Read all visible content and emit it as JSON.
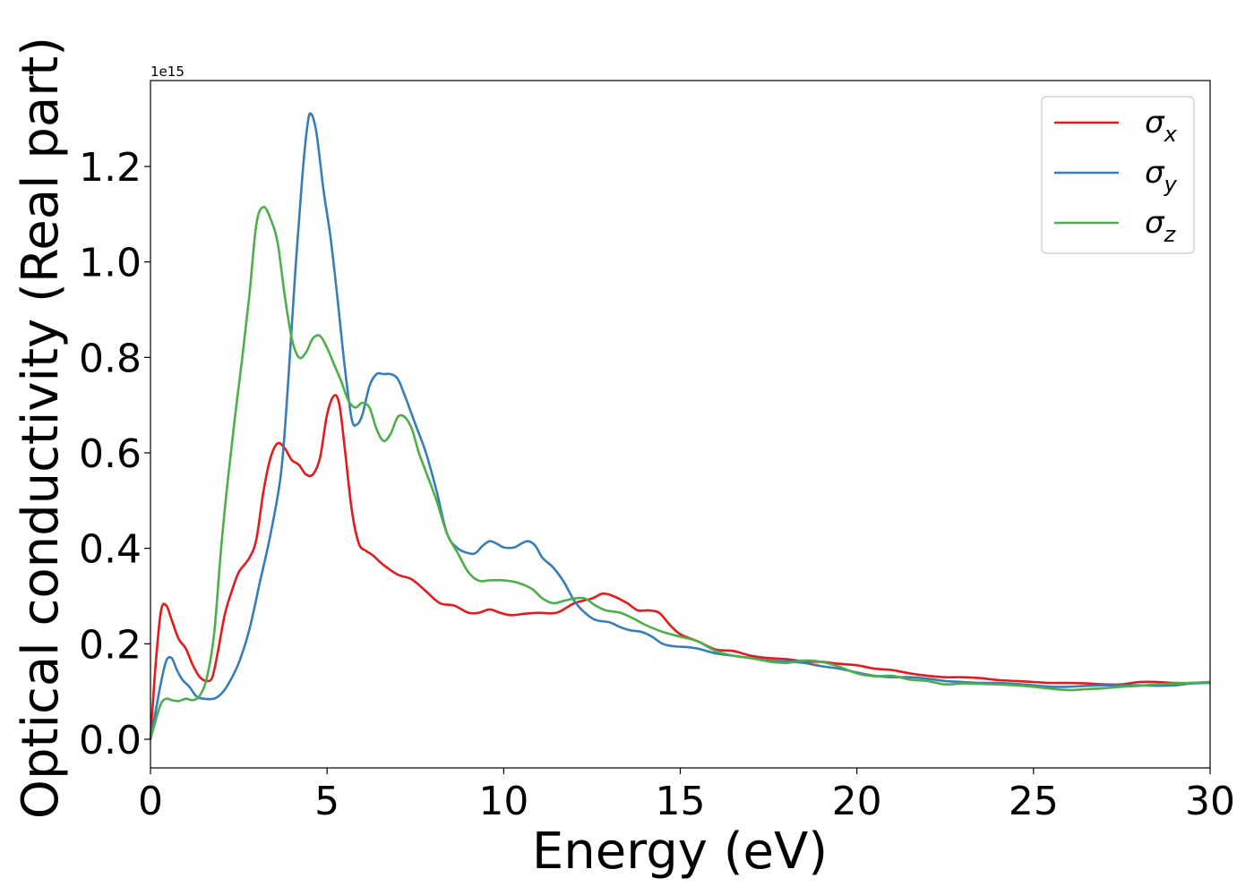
{
  "chart_data": {
    "type": "line",
    "xlabel": "Energy (eV)",
    "ylabel": "Optical conductivity (Real part)",
    "y_multiplier": "1e15",
    "xlim": [
      0,
      30
    ],
    "ylim": [
      -0.06,
      1.38
    ],
    "x_ticks": [
      0,
      5,
      10,
      15,
      20,
      25,
      30
    ],
    "x_tick_labels": [
      "0",
      "5",
      "10",
      "15",
      "20",
      "25",
      "30"
    ],
    "y_ticks": [
      0.0,
      0.2,
      0.4,
      0.6,
      0.8,
      1.0,
      1.2
    ],
    "y_tick_labels": [
      "0.0",
      "0.2",
      "0.4",
      "0.6",
      "0.8",
      "1.0",
      "1.2"
    ],
    "grid": false,
    "legend_position": "top-right",
    "series": [
      {
        "name": "σ",
        "subscript": "x",
        "color": "#e41a1c",
        "points": [
          [
            0,
            0
          ],
          [
            0.15,
            0.16
          ],
          [
            0.3,
            0.27
          ],
          [
            0.45,
            0.28
          ],
          [
            0.6,
            0.25
          ],
          [
            0.8,
            0.21
          ],
          [
            1.0,
            0.19
          ],
          [
            1.2,
            0.155
          ],
          [
            1.4,
            0.13
          ],
          [
            1.6,
            0.122
          ],
          [
            1.75,
            0.13
          ],
          [
            1.9,
            0.18
          ],
          [
            2.1,
            0.26
          ],
          [
            2.3,
            0.31
          ],
          [
            2.5,
            0.35
          ],
          [
            2.8,
            0.38
          ],
          [
            3.0,
            0.42
          ],
          [
            3.2,
            0.52
          ],
          [
            3.4,
            0.59
          ],
          [
            3.6,
            0.62
          ],
          [
            3.8,
            0.61
          ],
          [
            4.0,
            0.585
          ],
          [
            4.2,
            0.575
          ],
          [
            4.4,
            0.555
          ],
          [
            4.6,
            0.555
          ],
          [
            4.8,
            0.59
          ],
          [
            5.0,
            0.68
          ],
          [
            5.2,
            0.72
          ],
          [
            5.35,
            0.7
          ],
          [
            5.5,
            0.61
          ],
          [
            5.7,
            0.48
          ],
          [
            5.9,
            0.41
          ],
          [
            6.1,
            0.395
          ],
          [
            6.3,
            0.385
          ],
          [
            6.6,
            0.365
          ],
          [
            7.0,
            0.345
          ],
          [
            7.4,
            0.335
          ],
          [
            7.8,
            0.31
          ],
          [
            8.2,
            0.285
          ],
          [
            8.6,
            0.28
          ],
          [
            9.0,
            0.265
          ],
          [
            9.3,
            0.265
          ],
          [
            9.6,
            0.272
          ],
          [
            9.9,
            0.265
          ],
          [
            10.2,
            0.26
          ],
          [
            10.6,
            0.263
          ],
          [
            11.0,
            0.265
          ],
          [
            11.5,
            0.265
          ],
          [
            12.0,
            0.285
          ],
          [
            12.5,
            0.295
          ],
          [
            12.8,
            0.305
          ],
          [
            13.1,
            0.3
          ],
          [
            13.5,
            0.285
          ],
          [
            13.8,
            0.27
          ],
          [
            14.1,
            0.27
          ],
          [
            14.4,
            0.265
          ],
          [
            14.7,
            0.24
          ],
          [
            15.0,
            0.22
          ],
          [
            15.5,
            0.205
          ],
          [
            16.0,
            0.188
          ],
          [
            16.5,
            0.185
          ],
          [
            17.0,
            0.175
          ],
          [
            17.5,
            0.17
          ],
          [
            18.0,
            0.168
          ],
          [
            18.5,
            0.163
          ],
          [
            19.0,
            0.162
          ],
          [
            19.5,
            0.158
          ],
          [
            20.0,
            0.155
          ],
          [
            20.5,
            0.148
          ],
          [
            21.0,
            0.145
          ],
          [
            21.5,
            0.138
          ],
          [
            22.0,
            0.133
          ],
          [
            22.5,
            0.13
          ],
          [
            23.0,
            0.13
          ],
          [
            23.5,
            0.128
          ],
          [
            24.0,
            0.124
          ],
          [
            24.5,
            0.122
          ],
          [
            25.0,
            0.12
          ],
          [
            25.5,
            0.118
          ],
          [
            26.0,
            0.118
          ],
          [
            26.5,
            0.117
          ],
          [
            27.0,
            0.115
          ],
          [
            27.5,
            0.115
          ],
          [
            28.0,
            0.12
          ],
          [
            28.5,
            0.12
          ],
          [
            29.0,
            0.118
          ],
          [
            29.5,
            0.118
          ],
          [
            30.0,
            0.12
          ]
        ]
      },
      {
        "name": "σ",
        "subscript": "y",
        "color": "#377eb8",
        "points": [
          [
            0,
            0
          ],
          [
            0.15,
            0.06
          ],
          [
            0.3,
            0.12
          ],
          [
            0.45,
            0.165
          ],
          [
            0.6,
            0.17
          ],
          [
            0.75,
            0.145
          ],
          [
            0.9,
            0.125
          ],
          [
            1.1,
            0.11
          ],
          [
            1.3,
            0.09
          ],
          [
            1.5,
            0.085
          ],
          [
            1.8,
            0.085
          ],
          [
            2.0,
            0.095
          ],
          [
            2.2,
            0.115
          ],
          [
            2.5,
            0.16
          ],
          [
            2.8,
            0.23
          ],
          [
            3.1,
            0.33
          ],
          [
            3.4,
            0.43
          ],
          [
            3.7,
            0.56
          ],
          [
            3.9,
            0.75
          ],
          [
            4.1,
            0.98
          ],
          [
            4.3,
            1.18
          ],
          [
            4.45,
            1.29
          ],
          [
            4.55,
            1.31
          ],
          [
            4.7,
            1.27
          ],
          [
            4.9,
            1.15
          ],
          [
            5.1,
            1.05
          ],
          [
            5.3,
            0.92
          ],
          [
            5.5,
            0.78
          ],
          [
            5.7,
            0.67
          ],
          [
            5.85,
            0.66
          ],
          [
            6.0,
            0.68
          ],
          [
            6.2,
            0.74
          ],
          [
            6.4,
            0.765
          ],
          [
            6.6,
            0.765
          ],
          [
            6.8,
            0.765
          ],
          [
            7.0,
            0.755
          ],
          [
            7.2,
            0.72
          ],
          [
            7.5,
            0.66
          ],
          [
            7.8,
            0.6
          ],
          [
            8.1,
            0.52
          ],
          [
            8.4,
            0.43
          ],
          [
            8.7,
            0.4
          ],
          [
            9.0,
            0.39
          ],
          [
            9.2,
            0.39
          ],
          [
            9.4,
            0.405
          ],
          [
            9.6,
            0.415
          ],
          [
            9.8,
            0.41
          ],
          [
            10.0,
            0.402
          ],
          [
            10.3,
            0.402
          ],
          [
            10.5,
            0.41
          ],
          [
            10.7,
            0.415
          ],
          [
            10.9,
            0.405
          ],
          [
            11.1,
            0.38
          ],
          [
            11.4,
            0.36
          ],
          [
            11.7,
            0.33
          ],
          [
            12.0,
            0.29
          ],
          [
            12.3,
            0.265
          ],
          [
            12.6,
            0.25
          ],
          [
            13.0,
            0.245
          ],
          [
            13.3,
            0.235
          ],
          [
            13.6,
            0.228
          ],
          [
            13.9,
            0.225
          ],
          [
            14.2,
            0.215
          ],
          [
            14.5,
            0.2
          ],
          [
            14.8,
            0.195
          ],
          [
            15.2,
            0.193
          ],
          [
            15.5,
            0.19
          ],
          [
            16.0,
            0.18
          ],
          [
            16.5,
            0.175
          ],
          [
            17.0,
            0.17
          ],
          [
            17.5,
            0.165
          ],
          [
            18.0,
            0.163
          ],
          [
            18.5,
            0.16
          ],
          [
            19.0,
            0.153
          ],
          [
            19.5,
            0.148
          ],
          [
            20.0,
            0.14
          ],
          [
            20.5,
            0.133
          ],
          [
            21.0,
            0.13
          ],
          [
            21.5,
            0.13
          ],
          [
            22.0,
            0.127
          ],
          [
            22.5,
            0.122
          ],
          [
            23.0,
            0.12
          ],
          [
            23.5,
            0.118
          ],
          [
            24.0,
            0.118
          ],
          [
            24.5,
            0.116
          ],
          [
            25.0,
            0.113
          ],
          [
            25.5,
            0.11
          ],
          [
            26.0,
            0.11
          ],
          [
            26.5,
            0.112
          ],
          [
            27.0,
            0.113
          ],
          [
            27.5,
            0.113
          ],
          [
            28.0,
            0.113
          ],
          [
            28.5,
            0.112
          ],
          [
            29.0,
            0.113
          ],
          [
            29.5,
            0.117
          ],
          [
            30.0,
            0.118
          ]
        ]
      },
      {
        "name": "σ",
        "subscript": "z",
        "color": "#4daf4a",
        "points": [
          [
            0,
            0
          ],
          [
            0.15,
            0.04
          ],
          [
            0.3,
            0.075
          ],
          [
            0.45,
            0.085
          ],
          [
            0.6,
            0.082
          ],
          [
            0.8,
            0.08
          ],
          [
            1.0,
            0.085
          ],
          [
            1.2,
            0.082
          ],
          [
            1.4,
            0.092
          ],
          [
            1.6,
            0.13
          ],
          [
            1.8,
            0.22
          ],
          [
            2.0,
            0.4
          ],
          [
            2.2,
            0.55
          ],
          [
            2.4,
            0.68
          ],
          [
            2.6,
            0.8
          ],
          [
            2.8,
            0.93
          ],
          [
            3.0,
            1.08
          ],
          [
            3.2,
            1.115
          ],
          [
            3.4,
            1.09
          ],
          [
            3.6,
            1.04
          ],
          [
            3.8,
            0.93
          ],
          [
            4.0,
            0.84
          ],
          [
            4.2,
            0.8
          ],
          [
            4.4,
            0.81
          ],
          [
            4.6,
            0.84
          ],
          [
            4.8,
            0.845
          ],
          [
            5.0,
            0.82
          ],
          [
            5.2,
            0.785
          ],
          [
            5.4,
            0.75
          ],
          [
            5.6,
            0.71
          ],
          [
            5.8,
            0.695
          ],
          [
            6.0,
            0.705
          ],
          [
            6.2,
            0.695
          ],
          [
            6.4,
            0.65
          ],
          [
            6.6,
            0.625
          ],
          [
            6.8,
            0.64
          ],
          [
            7.0,
            0.675
          ],
          [
            7.2,
            0.675
          ],
          [
            7.4,
            0.65
          ],
          [
            7.6,
            0.6
          ],
          [
            7.8,
            0.56
          ],
          [
            8.1,
            0.5
          ],
          [
            8.4,
            0.43
          ],
          [
            8.7,
            0.39
          ],
          [
            9.0,
            0.35
          ],
          [
            9.3,
            0.332
          ],
          [
            9.6,
            0.333
          ],
          [
            10.0,
            0.333
          ],
          [
            10.4,
            0.328
          ],
          [
            10.8,
            0.315
          ],
          [
            11.1,
            0.295
          ],
          [
            11.4,
            0.285
          ],
          [
            11.7,
            0.29
          ],
          [
            12.0,
            0.295
          ],
          [
            12.3,
            0.295
          ],
          [
            12.6,
            0.28
          ],
          [
            12.9,
            0.27
          ],
          [
            13.3,
            0.265
          ],
          [
            13.7,
            0.252
          ],
          [
            14.0,
            0.24
          ],
          [
            14.5,
            0.225
          ],
          [
            15.0,
            0.215
          ],
          [
            15.5,
            0.205
          ],
          [
            16.0,
            0.185
          ],
          [
            16.5,
            0.175
          ],
          [
            17.0,
            0.17
          ],
          [
            17.5,
            0.163
          ],
          [
            18.0,
            0.16
          ],
          [
            18.5,
            0.165
          ],
          [
            19.0,
            0.162
          ],
          [
            19.5,
            0.152
          ],
          [
            20.0,
            0.138
          ],
          [
            20.5,
            0.132
          ],
          [
            21.0,
            0.133
          ],
          [
            21.5,
            0.125
          ],
          [
            22.0,
            0.122
          ],
          [
            22.5,
            0.115
          ],
          [
            23.0,
            0.117
          ],
          [
            23.5,
            0.116
          ],
          [
            24.0,
            0.115
          ],
          [
            24.5,
            0.113
          ],
          [
            25.0,
            0.11
          ],
          [
            25.5,
            0.106
          ],
          [
            26.0,
            0.103
          ],
          [
            26.5,
            0.105
          ],
          [
            27.0,
            0.107
          ],
          [
            27.5,
            0.11
          ],
          [
            28.0,
            0.112
          ],
          [
            28.5,
            0.115
          ],
          [
            29.0,
            0.117
          ],
          [
            29.5,
            0.118
          ],
          [
            30.0,
            0.12
          ]
        ]
      }
    ]
  }
}
